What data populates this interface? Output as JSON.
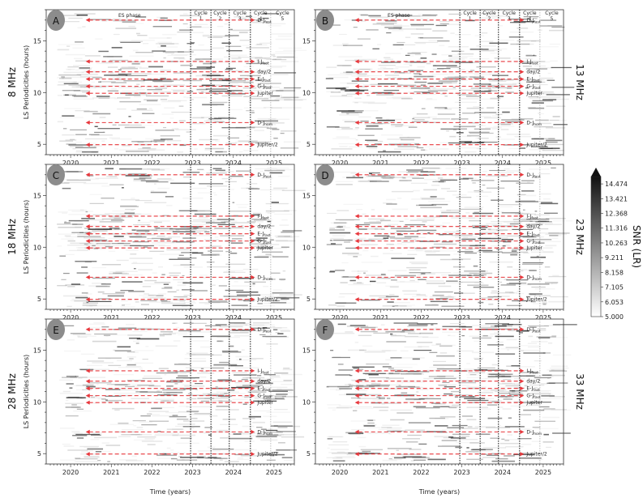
{
  "colors": {
    "reference_line": "#e8383d",
    "cycle_line": "#222222",
    "spectro_dark": "#1a1a1a"
  },
  "chart_data": [
    {
      "panel": "A",
      "type": "heatmap",
      "frequency": "8 MHz",
      "ylabel": "LS Periodicities (hours)",
      "xlabel": "",
      "xlim": [
        2019.4,
        2025.5
      ],
      "ylim": [
        4,
        18
      ],
      "xticks": [
        "2020",
        "2021",
        "2022",
        "2023",
        "2024",
        "2025"
      ],
      "yticks": [
        "5",
        "10",
        "15"
      ],
      "phase_labels": [
        "ES phase",
        "Cycle 1",
        "Cycle 2",
        "Cycle 3",
        "Cycle 4",
        "Cycle 5"
      ],
      "cycle_boundaries": [
        2022.95,
        2023.45,
        2023.9,
        2024.42,
        2024.92
      ],
      "reference_lines": [
        {
          "label": "D-Jfast",
          "period": 17.0
        },
        {
          "label": "I-Jfast",
          "period": 13.0
        },
        {
          "label": "day/2",
          "period": 12.0
        },
        {
          "label": "E-Jfast",
          "period": 11.3
        },
        {
          "label": "G-Jfast",
          "period": 10.6
        },
        {
          "label": "Jupiter",
          "period": 9.93
        },
        {
          "label": "D-Jhom",
          "period": 7.1
        },
        {
          "label": "Jupiter/2",
          "period": 4.96
        }
      ]
    },
    {
      "panel": "B",
      "type": "heatmap",
      "frequency": "13 MHz",
      "ylabel": "",
      "xlabel": "",
      "xlim": [
        2019.4,
        2025.5
      ],
      "ylim": [
        4,
        18
      ],
      "xticks": [
        "2020",
        "2021",
        "2022",
        "2023",
        "2024",
        "2025"
      ],
      "yticks": [
        "5",
        "10",
        "15"
      ],
      "phase_labels": [
        "ES phase",
        "Cycle 1",
        "Cycle 2",
        "Cycle 3",
        "Cycle 4",
        "Cycle 5"
      ],
      "cycle_boundaries": [
        2022.95,
        2023.45,
        2023.9,
        2024.42,
        2024.92
      ],
      "reference_lines": [
        {
          "label": "D-Jfast",
          "period": 17.0
        },
        {
          "label": "I-Jfast",
          "period": 13.0
        },
        {
          "label": "day/2",
          "period": 12.0
        },
        {
          "label": "E-Jfast",
          "period": 11.3
        },
        {
          "label": "G-Jfast",
          "period": 10.6
        },
        {
          "label": "Jupiter",
          "period": 9.93
        },
        {
          "label": "D-Jhom",
          "period": 7.1
        },
        {
          "label": "Jupiter/2",
          "period": 4.96
        }
      ]
    },
    {
      "panel": "C",
      "type": "heatmap",
      "frequency": "18 MHz",
      "ylabel": "LS Periodicities (hours)",
      "xlabel": "",
      "xlim": [
        2019.4,
        2025.5
      ],
      "ylim": [
        4,
        18
      ],
      "xticks": [
        "2020",
        "2021",
        "2022",
        "2023",
        "2024",
        "2025"
      ],
      "yticks": [
        "5",
        "10",
        "15"
      ],
      "phase_labels": [],
      "cycle_boundaries": [
        2022.95,
        2023.45,
        2023.9,
        2024.42,
        2024.92
      ],
      "reference_lines": [
        {
          "label": "D-Jfast",
          "period": 17.0
        },
        {
          "label": "I-Jfast",
          "period": 13.0
        },
        {
          "label": "day/2",
          "period": 12.0
        },
        {
          "label": "E-Jfast",
          "period": 11.3
        },
        {
          "label": "G-Jfast",
          "period": 10.6
        },
        {
          "label": "Jupiter",
          "period": 9.93
        },
        {
          "label": "D-Jhom",
          "period": 7.1
        },
        {
          "label": "Jupiter/2",
          "period": 4.96
        }
      ]
    },
    {
      "panel": "D",
      "type": "heatmap",
      "frequency": "23 MHz",
      "ylabel": "",
      "xlabel": "",
      "xlim": [
        2019.4,
        2025.5
      ],
      "ylim": [
        4,
        18
      ],
      "xticks": [
        "2020",
        "2021",
        "2022",
        "2023",
        "2024",
        "2025"
      ],
      "yticks": [
        "5",
        "10",
        "15"
      ],
      "phase_labels": [],
      "cycle_boundaries": [
        2022.95,
        2023.45,
        2023.9,
        2024.42,
        2024.92
      ],
      "reference_lines": [
        {
          "label": "D-Jfast",
          "period": 17.0
        },
        {
          "label": "I-Jfast",
          "period": 13.0
        },
        {
          "label": "day/2",
          "period": 12.0
        },
        {
          "label": "E-Jfast",
          "period": 11.3
        },
        {
          "label": "G-Jfast",
          "period": 10.6
        },
        {
          "label": "Jupiter",
          "period": 9.93
        },
        {
          "label": "D-Jhom",
          "period": 7.1
        },
        {
          "label": "Jupiter/2",
          "period": 4.96
        }
      ]
    },
    {
      "panel": "E",
      "type": "heatmap",
      "frequency": "28 MHz",
      "ylabel": "LS Periodicities (hours)",
      "xlabel": "Time (years)",
      "xlim": [
        2019.4,
        2025.5
      ],
      "ylim": [
        4,
        18
      ],
      "xticks": [
        "2020",
        "2021",
        "2022",
        "2023",
        "2024",
        "2025"
      ],
      "yticks": [
        "5",
        "10",
        "15"
      ],
      "phase_labels": [],
      "cycle_boundaries": [
        2022.95,
        2023.45,
        2023.9,
        2024.42,
        2024.92
      ],
      "reference_lines": [
        {
          "label": "D-Jfast",
          "period": 17.0
        },
        {
          "label": "I-Jfast",
          "period": 13.0
        },
        {
          "label": "day/2",
          "period": 12.0
        },
        {
          "label": "E-Jfast",
          "period": 11.3
        },
        {
          "label": "G-Jfast",
          "period": 10.6
        },
        {
          "label": "Jupiter",
          "period": 9.93
        },
        {
          "label": "D-Jhom",
          "period": 7.1
        },
        {
          "label": "Jupiter/2",
          "period": 4.96
        }
      ]
    },
    {
      "panel": "F",
      "type": "heatmap",
      "frequency": "33 MHz",
      "ylabel": "",
      "xlabel": "Time (years)",
      "xlim": [
        2019.4,
        2025.5
      ],
      "ylim": [
        4,
        18
      ],
      "xticks": [
        "2020",
        "2021",
        "2022",
        "2023",
        "2024",
        "2025"
      ],
      "yticks": [
        "5",
        "10",
        "15"
      ],
      "phase_labels": [],
      "cycle_boundaries": [
        2022.95,
        2023.45,
        2023.9,
        2024.42,
        2024.92
      ],
      "reference_lines": [
        {
          "label": "D-Jfast",
          "period": 17.0
        },
        {
          "label": "I-Jfast",
          "period": 13.0
        },
        {
          "label": "day/2",
          "period": 12.0
        },
        {
          "label": "E-Jfast",
          "period": 11.3
        },
        {
          "label": "G-Jfast",
          "period": 10.6
        },
        {
          "label": "Jupiter",
          "period": 9.93
        },
        {
          "label": "D-Jhom",
          "period": 7.1
        },
        {
          "label": "Jupiter/2",
          "period": 4.96
        }
      ]
    }
  ],
  "colorbar": {
    "title": "SNR (LR)",
    "ticks": [
      "14.474",
      "13.421",
      "12.368",
      "11.316",
      "10.263",
      "9.211",
      "8.158",
      "7.105",
      "6.053",
      "5.000"
    ],
    "min": 5.0,
    "max": 15.0
  }
}
